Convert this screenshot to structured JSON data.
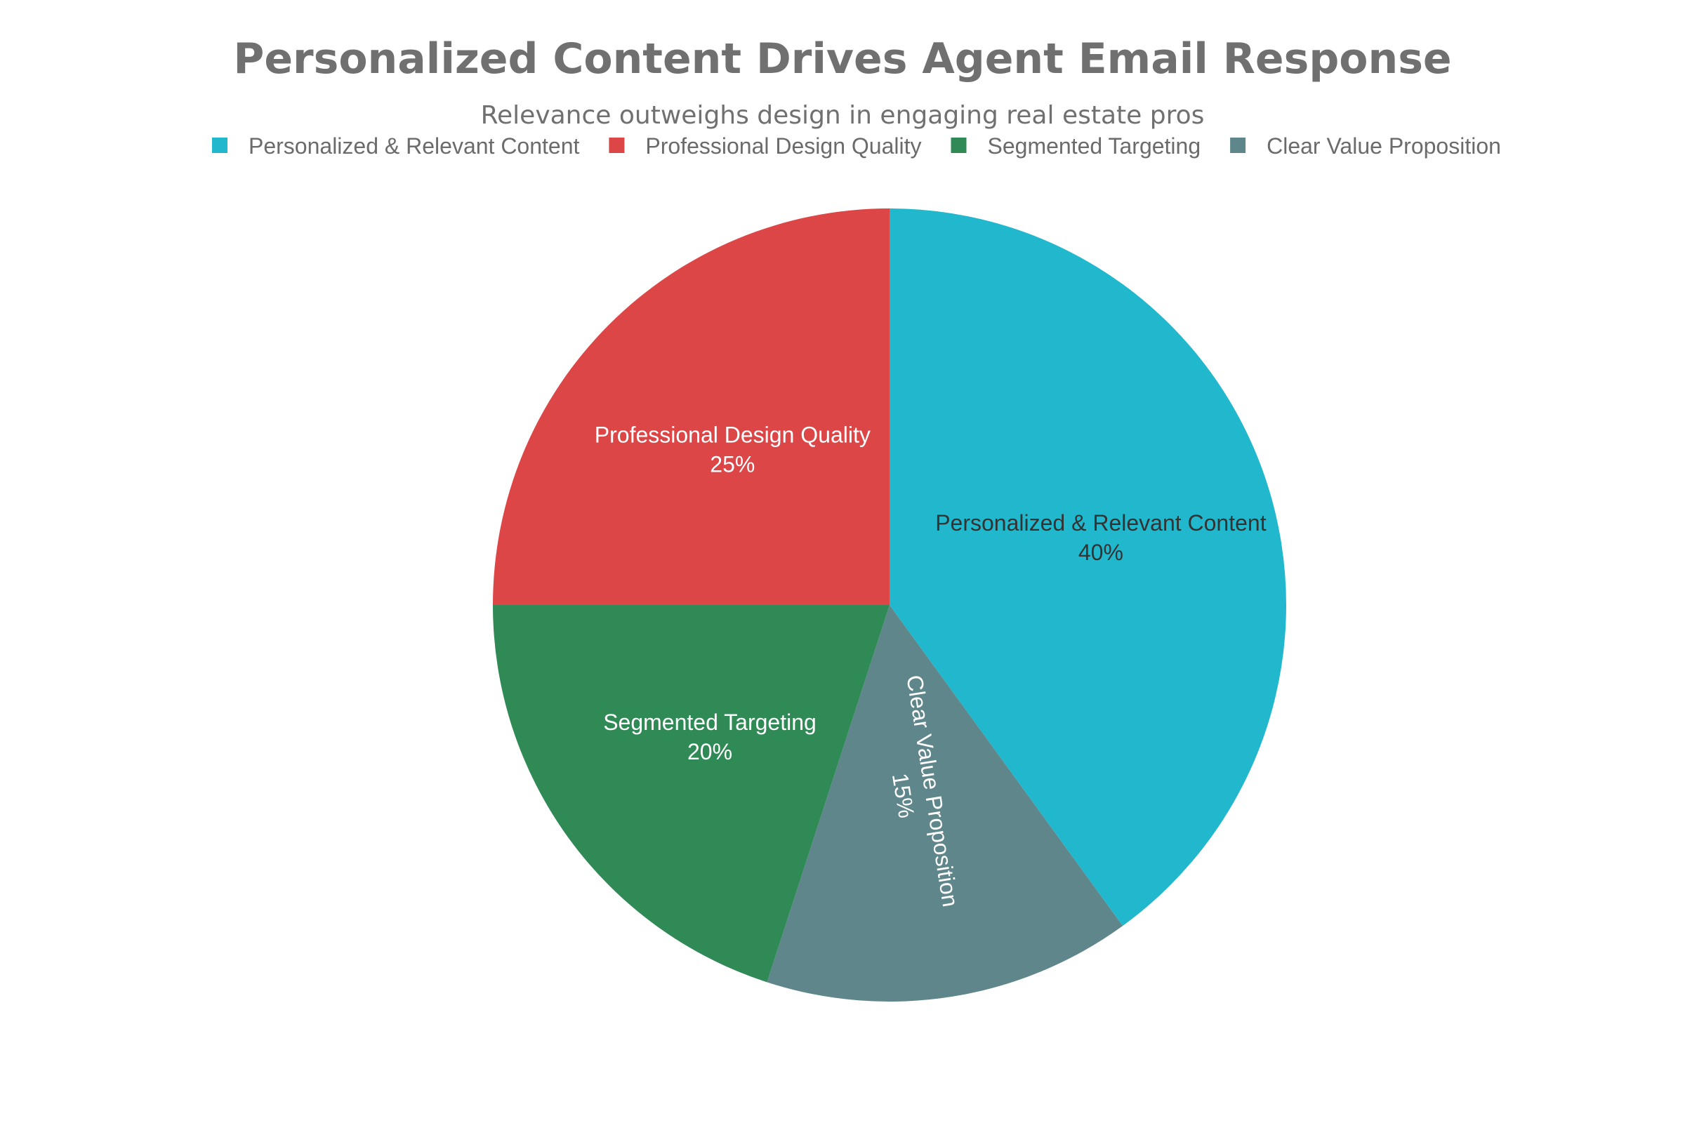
{
  "colors": {
    "title": "#707070",
    "legend_text": "#6b6b6b",
    "background": "#ffffff"
  },
  "chart_data": {
    "type": "pie",
    "title": "Personalized Content Drives Agent Email Response",
    "subtitle": "Relevance outweighs design in engaging real estate pros",
    "legend_position": "top",
    "direction": "clockwise",
    "start_angle_deg": 0,
    "slices": [
      {
        "label": "Personalized & Relevant Content",
        "value": 40,
        "value_label": "40%",
        "color": "#21b8ce",
        "text_color": "#333333"
      },
      {
        "label": "Clear Value Proposition",
        "value": 15,
        "value_label": "15%",
        "color": "#5e868b",
        "text_color": "#ffffff"
      },
      {
        "label": "Segmented Targeting",
        "value": 20,
        "value_label": "20%",
        "color": "#2f8a56",
        "text_color": "#ffffff"
      },
      {
        "label": "Professional Design Quality",
        "value": 25,
        "value_label": "25%",
        "color": "#dc4647",
        "text_color": "#ffffff"
      }
    ],
    "legend_order": [
      "Personalized & Relevant Content",
      "Professional Design Quality",
      "Segmented Targeting",
      "Clear Value Proposition"
    ]
  }
}
